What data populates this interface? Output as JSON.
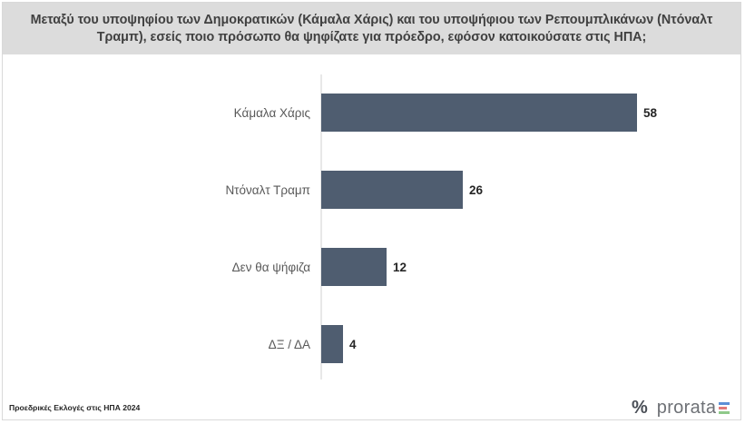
{
  "header": {
    "title": "Μεταξύ του υποψηφίου των Δημοκρατικών (Κάμαλα Χάρις) και του υποψήφιου των Ρεπουμπλικάνων (Ντόναλτ Τραμπ), εσείς ποιο πρόσωπο θα ψηφίζατε για πρόεδρο, εφόσον κατοικούσατε στις ΗΠΑ;"
  },
  "footer": {
    "label": "Προεδρικές Εκλογές στις ΗΠΑ 2024",
    "logo_mark": "%",
    "logo_text": "prorata",
    "logo_colors": [
      "#5b8fd6",
      "#e07a7a",
      "#8fc98a"
    ]
  },
  "chart_data": {
    "type": "bar",
    "orientation": "horizontal",
    "categories": [
      "Κάμαλα Χάρις",
      "Ντόναλτ Τραμπ",
      "Δεν θα ψήφιζα",
      "ΔΞ / ΔΑ"
    ],
    "values": [
      58,
      26,
      12,
      4
    ],
    "data_labels": [
      "58",
      "26",
      "12",
      "4"
    ],
    "bar_color": "#4f5d70",
    "xlim": [
      0,
      60
    ],
    "grid": false,
    "legend": "none"
  }
}
